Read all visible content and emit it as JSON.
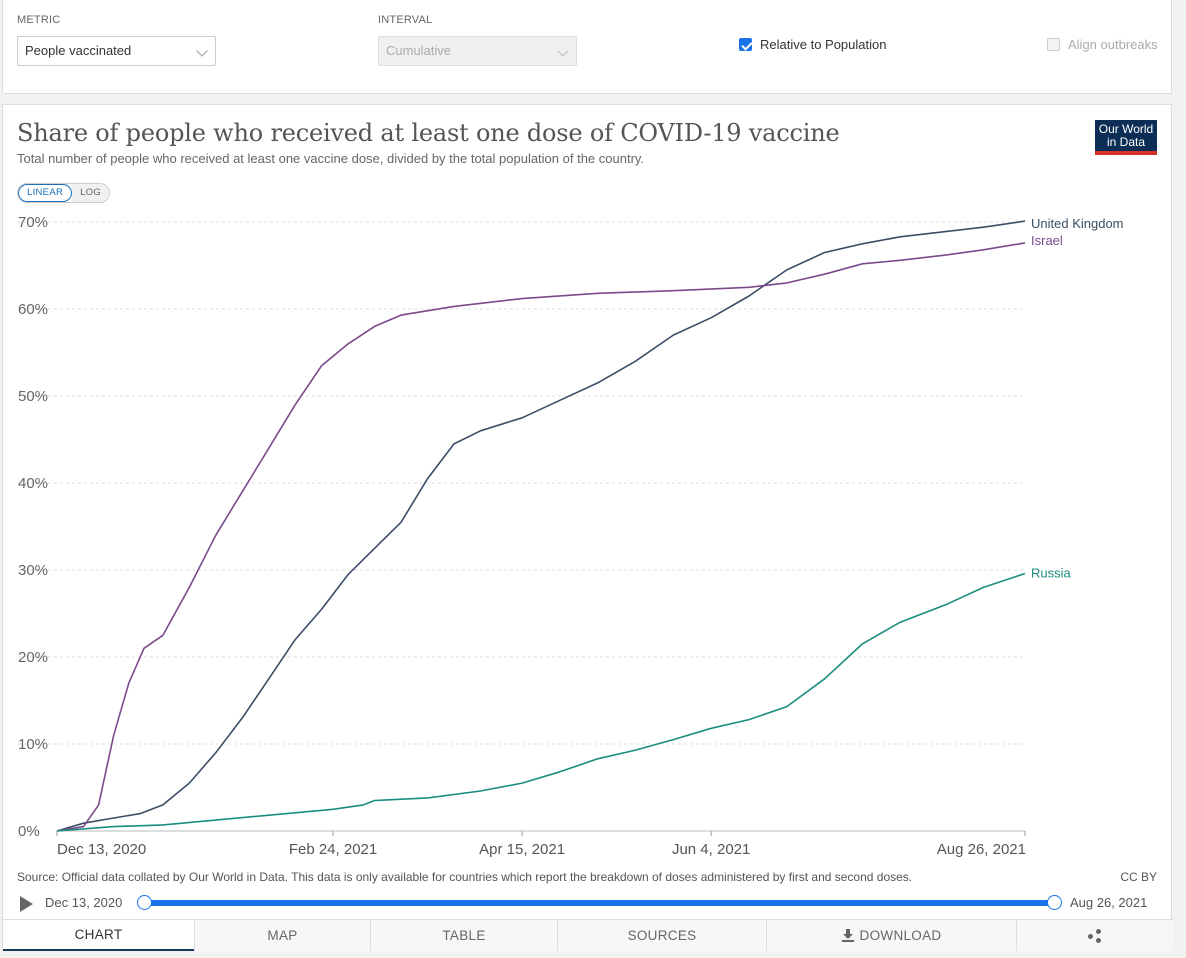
{
  "controls": {
    "metric_label": "METRIC",
    "metric_value": "People vaccinated",
    "interval_label": "INTERVAL",
    "interval_value": "Cumulative",
    "relative_label": "Relative to Population",
    "relative_checked": true,
    "align_label": "Align outbreaks",
    "align_checked": false
  },
  "header": {
    "title": "Share of people who received at least one dose of COVID-19 vaccine",
    "subtitle": "Total number of people who received at least one vaccine dose, divided by the total population of the country.",
    "logo_line1": "Our World",
    "logo_line2": "in Data"
  },
  "scale": {
    "linear": "LINEAR",
    "log": "LOG",
    "active": "linear"
  },
  "chart_data": {
    "type": "line",
    "title": "Share of people who received at least one dose of COVID-19 vaccine",
    "xlabel": "",
    "ylabel": "",
    "x_type": "date",
    "xlim": [
      "2020-12-13",
      "2021-08-26"
    ],
    "ylim": [
      0,
      70
    ],
    "y_ticks": [
      0,
      10,
      20,
      30,
      40,
      50,
      60,
      70
    ],
    "y_tick_labels": [
      "0%",
      "10%",
      "20%",
      "30%",
      "40%",
      "50%",
      "60%",
      "70%"
    ],
    "x_ticks": [
      "2020-12-13",
      "2021-02-24",
      "2021-04-15",
      "2021-06-04",
      "2021-08-26"
    ],
    "x_tick_labels": [
      "Dec 13, 2020",
      "Feb 24, 2021",
      "Apr 15, 2021",
      "Jun 4, 2021",
      "Aug 26, 2021"
    ],
    "grid": "horizontal-dashed",
    "legend": "inline-right",
    "series": [
      {
        "name": "United Kingdom",
        "color": "#3c4e66",
        "points": [
          [
            "2020-12-13",
            0
          ],
          [
            "2020-12-20",
            0.9
          ],
          [
            "2020-12-28",
            1.5
          ],
          [
            "2021-01-04",
            2.0
          ],
          [
            "2021-01-10",
            3.0
          ],
          [
            "2021-01-17",
            5.5
          ],
          [
            "2021-01-24",
            9.0
          ],
          [
            "2021-01-31",
            13.0
          ],
          [
            "2021-02-07",
            17.5
          ],
          [
            "2021-02-14",
            22.0
          ],
          [
            "2021-02-21",
            25.5
          ],
          [
            "2021-02-28",
            29.5
          ],
          [
            "2021-03-07",
            32.5
          ],
          [
            "2021-03-14",
            35.5
          ],
          [
            "2021-03-21",
            40.5
          ],
          [
            "2021-03-28",
            44.5
          ],
          [
            "2021-04-04",
            46.0
          ],
          [
            "2021-04-15",
            47.5
          ],
          [
            "2021-04-25",
            49.5
          ],
          [
            "2021-05-05",
            51.5
          ],
          [
            "2021-05-15",
            54.0
          ],
          [
            "2021-05-25",
            57.0
          ],
          [
            "2021-06-04",
            59.0
          ],
          [
            "2021-06-14",
            61.5
          ],
          [
            "2021-06-24",
            64.5
          ],
          [
            "2021-07-04",
            66.5
          ],
          [
            "2021-07-14",
            67.5
          ],
          [
            "2021-07-24",
            68.3
          ],
          [
            "2021-08-05",
            68.9
          ],
          [
            "2021-08-15",
            69.4
          ],
          [
            "2021-08-26",
            70.1
          ]
        ]
      },
      {
        "name": "Israel",
        "color": "#7a4a8c",
        "points": [
          [
            "2020-12-13",
            0
          ],
          [
            "2020-12-20",
            0.5
          ],
          [
            "2020-12-24",
            3.0
          ],
          [
            "2020-12-28",
            11.0
          ],
          [
            "2021-01-01",
            17.0
          ],
          [
            "2021-01-05",
            21.0
          ],
          [
            "2021-01-10",
            22.5
          ],
          [
            "2021-01-17",
            28.0
          ],
          [
            "2021-01-24",
            34.0
          ],
          [
            "2021-01-31",
            39.0
          ],
          [
            "2021-02-07",
            44.0
          ],
          [
            "2021-02-14",
            49.0
          ],
          [
            "2021-02-21",
            53.5
          ],
          [
            "2021-02-28",
            56.0
          ],
          [
            "2021-03-07",
            58.0
          ],
          [
            "2021-03-14",
            59.3
          ],
          [
            "2021-03-28",
            60.3
          ],
          [
            "2021-04-15",
            61.2
          ],
          [
            "2021-05-05",
            61.8
          ],
          [
            "2021-05-25",
            62.1
          ],
          [
            "2021-06-14",
            62.5
          ],
          [
            "2021-06-24",
            63.0
          ],
          [
            "2021-07-04",
            64.0
          ],
          [
            "2021-07-14",
            65.2
          ],
          [
            "2021-07-24",
            65.6
          ],
          [
            "2021-08-05",
            66.2
          ],
          [
            "2021-08-15",
            66.8
          ],
          [
            "2021-08-26",
            67.6
          ]
        ]
      },
      {
        "name": "Russia",
        "color": "#1b8d7e",
        "points": [
          [
            "2020-12-13",
            0
          ],
          [
            "2020-12-28",
            0.5
          ],
          [
            "2021-01-10",
            0.7
          ],
          [
            "2021-02-24",
            2.5
          ],
          [
            "2021-03-04",
            3.0
          ],
          [
            "2021-03-07",
            3.5
          ],
          [
            "2021-03-21",
            3.8
          ],
          [
            "2021-04-04",
            4.6
          ],
          [
            "2021-04-15",
            5.5
          ],
          [
            "2021-04-25",
            6.8
          ],
          [
            "2021-05-05",
            8.3
          ],
          [
            "2021-05-15",
            9.3
          ],
          [
            "2021-05-25",
            10.5
          ],
          [
            "2021-06-04",
            11.8
          ],
          [
            "2021-06-14",
            12.8
          ],
          [
            "2021-06-24",
            14.3
          ],
          [
            "2021-07-04",
            17.5
          ],
          [
            "2021-07-14",
            21.5
          ],
          [
            "2021-07-24",
            24.0
          ],
          [
            "2021-08-05",
            26.0
          ],
          [
            "2021-08-15",
            28.0
          ],
          [
            "2021-08-26",
            29.6
          ]
        ]
      }
    ]
  },
  "footer": {
    "source": "Source: Official data collated by Our World in Data. This data is only available for countries which report the breakdown of doses administered by first and second doses.",
    "license": "CC BY"
  },
  "timeline": {
    "start_label": "Dec 13, 2020",
    "end_label": "Aug 26, 2021"
  },
  "tabs": [
    {
      "label": "CHART"
    },
    {
      "label": "MAP"
    },
    {
      "label": "TABLE"
    },
    {
      "label": "SOURCES"
    },
    {
      "label": "DOWNLOAD"
    }
  ],
  "icons": {
    "play": "play-icon",
    "download": "download-icon",
    "share": "share-icon"
  }
}
